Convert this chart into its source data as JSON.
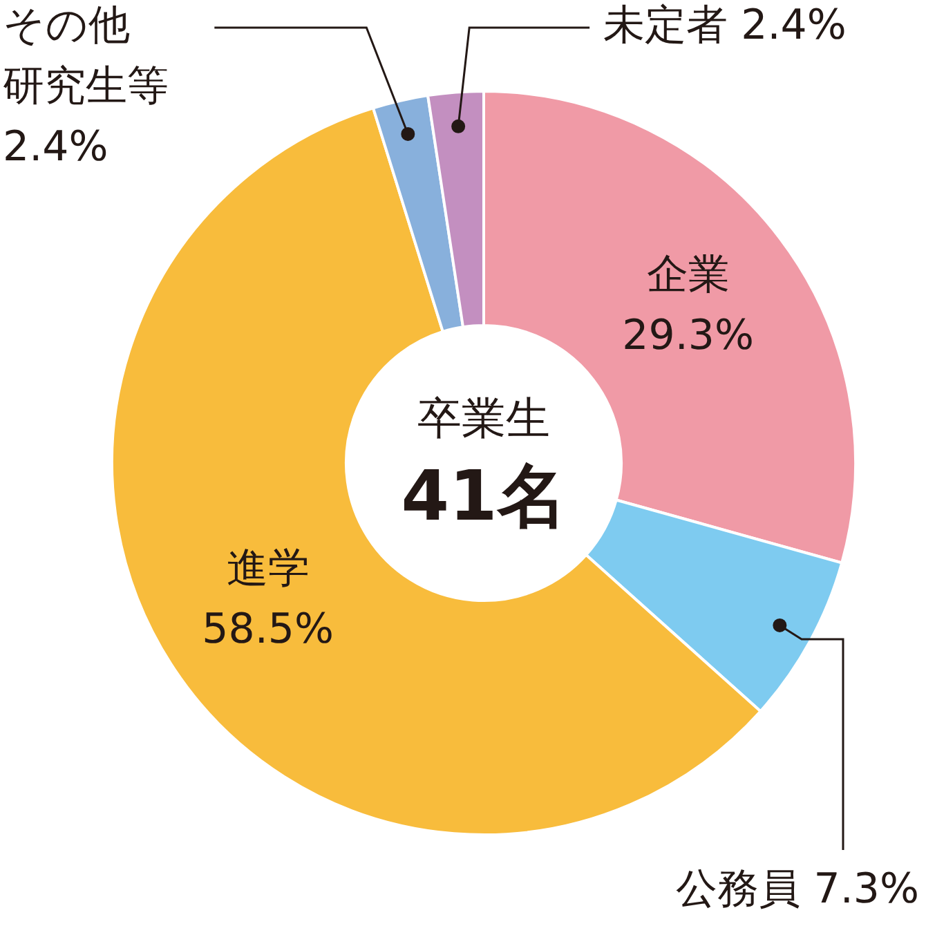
{
  "chart_data": {
    "type": "donut",
    "categories": [
      "企業",
      "公務員",
      "進学",
      "その他研究生等",
      "未定者"
    ],
    "values": [
      29.3,
      7.3,
      58.5,
      2.4,
      2.4
    ],
    "value_labels": [
      "29.3%",
      "7.3%",
      "58.5%",
      "2.4%",
      "2.4%"
    ],
    "colors": [
      "#f09aa6",
      "#7ecbf0",
      "#f8bc3c",
      "#88b0dc",
      "#c38fc0"
    ],
    "annotations": [
      "卒業生",
      "41名"
    ],
    "legend": false
  }
}
